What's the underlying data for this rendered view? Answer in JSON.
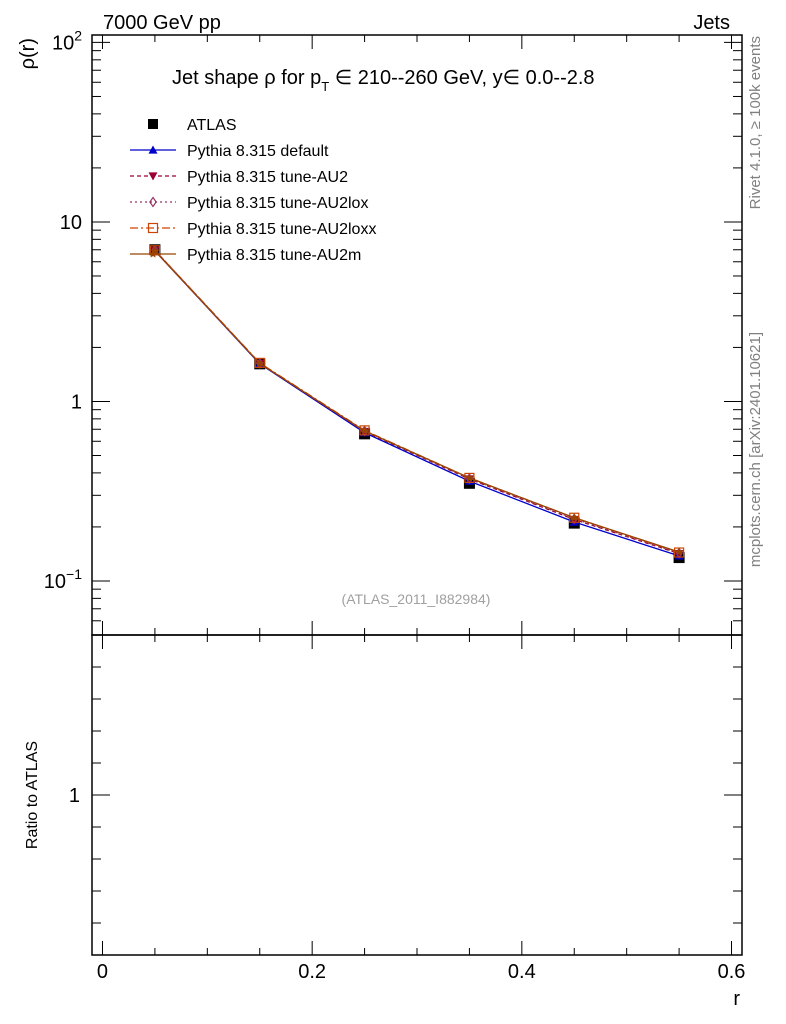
{
  "header": {
    "left": "7000 GeV pp",
    "right": "Jets"
  },
  "side_text": {
    "rivet": "Rivet 4.1.0, ≥ 100k events",
    "mcplots": "mcplots.cern.ch [arXiv:2401.10621]"
  },
  "plot_title": {
    "a": "Jet shape ρ for p",
    "sub": "T",
    "b": " ∈ 210--260 GeV, y∈ 0.0--2.8"
  },
  "watermark": "(ATLAS_2011_I882984)",
  "ratio_ylabel": "Ratio to ATLAS",
  "chart_data": {
    "type": "line",
    "title": "Jet shape ρ for p_T ∈ 210--260 GeV, y∈ 0.0--2.8",
    "xlabel": "r",
    "ylabel": "ρ(r)",
    "xlim": [
      -0.01,
      0.61
    ],
    "ylim_log": [
      0.05,
      110
    ],
    "x_ticks": [
      {
        "v": 0,
        "label": "0"
      },
      {
        "v": 0.2,
        "label": "0.2"
      },
      {
        "v": 0.4,
        "label": "0.4"
      },
      {
        "v": 0.6,
        "label": "0.6"
      }
    ],
    "y_ticks": [
      {
        "v": 100,
        "m": "10",
        "e": "2"
      },
      {
        "v": 10,
        "m": "10",
        "e": ""
      },
      {
        "v": 1,
        "m": "1",
        "e": ""
      },
      {
        "v": 0.1,
        "m": "10",
        "e": "−1"
      }
    ],
    "x": [
      0.05,
      0.15,
      0.25,
      0.35,
      0.45,
      0.55
    ],
    "series": [
      {
        "name": "ATLAS",
        "values": [
          7.0,
          1.62,
          0.66,
          0.35,
          0.21,
          0.135
        ],
        "color": "#000000",
        "marker": "square",
        "dash": ""
      },
      {
        "name": "Pythia 8.315 default",
        "values": [
          6.9,
          1.62,
          0.67,
          0.36,
          0.213,
          0.138
        ],
        "color": "#0000cc",
        "marker": "triangle",
        "dash": ""
      },
      {
        "name": "Pythia 8.315 tune-AU2",
        "values": [
          6.95,
          1.63,
          0.68,
          0.37,
          0.22,
          0.142
        ],
        "color": "#990033",
        "marker": "triangle-down",
        "dash": "4,3"
      },
      {
        "name": "Pythia 8.315 tune-AU2lox",
        "values": [
          6.95,
          1.63,
          0.685,
          0.372,
          0.222,
          0.143
        ],
        "color": "#993366",
        "marker": "diamond",
        "dash": "2,3"
      },
      {
        "name": "Pythia 8.315 tune-AU2loxx",
        "values": [
          6.95,
          1.64,
          0.69,
          0.375,
          0.225,
          0.144
        ],
        "color": "#cc4400",
        "marker": "square-open",
        "dash": "8,3,2,3"
      },
      {
        "name": "Pythia 8.315 tune-AU2m",
        "values": [
          6.9,
          1.63,
          0.685,
          0.375,
          0.225,
          0.145
        ],
        "color": "#994400",
        "marker": "star",
        "dash": ""
      }
    ],
    "ratio": {
      "ylim": [
        0.5,
        1.5
      ],
      "y_ticks": [
        {
          "v": 1,
          "label": "1"
        }
      ]
    }
  }
}
